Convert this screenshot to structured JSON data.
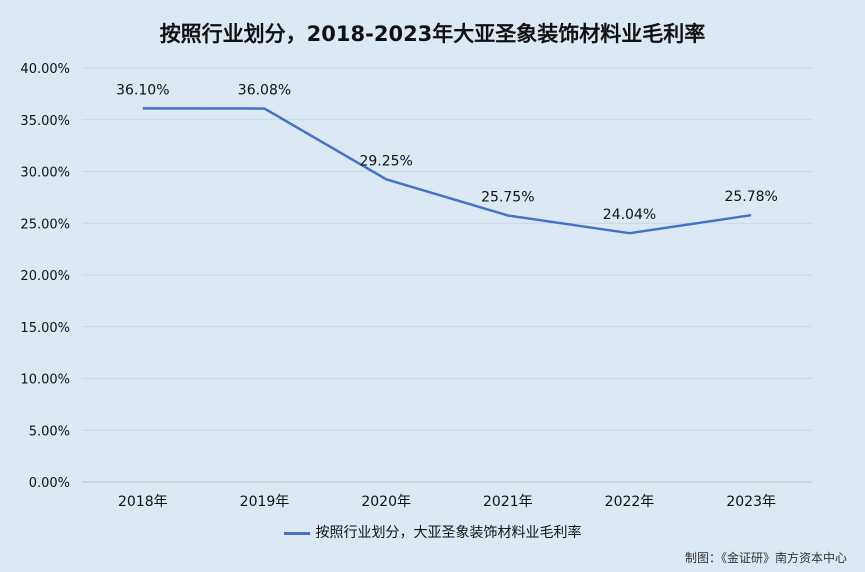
{
  "chart_data": {
    "type": "line",
    "title": "按照行业划分，2018-2023年大亚圣象装饰材料业毛利率",
    "categories": [
      "2018年",
      "2019年",
      "2020年",
      "2021年",
      "2022年",
      "2023年"
    ],
    "series": [
      {
        "name": "按照行业划分，大亚圣象装饰材料业毛利率",
        "values": [
          36.1,
          36.08,
          29.25,
          25.75,
          24.04,
          25.78
        ],
        "labels": [
          "36.10%",
          "36.08%",
          "29.25%",
          "25.75%",
          "24.04%",
          "25.78%"
        ],
        "color": "#4472c4"
      }
    ],
    "y_ticks": [
      "0.00%",
      "5.00%",
      "10.00%",
      "15.00%",
      "20.00%",
      "25.00%",
      "30.00%",
      "35.00%",
      "40.00%"
    ],
    "ylim": [
      0,
      40
    ],
    "grid": true,
    "legend": "bottom"
  },
  "source_note": "制图：《金证研》南方资本中心"
}
